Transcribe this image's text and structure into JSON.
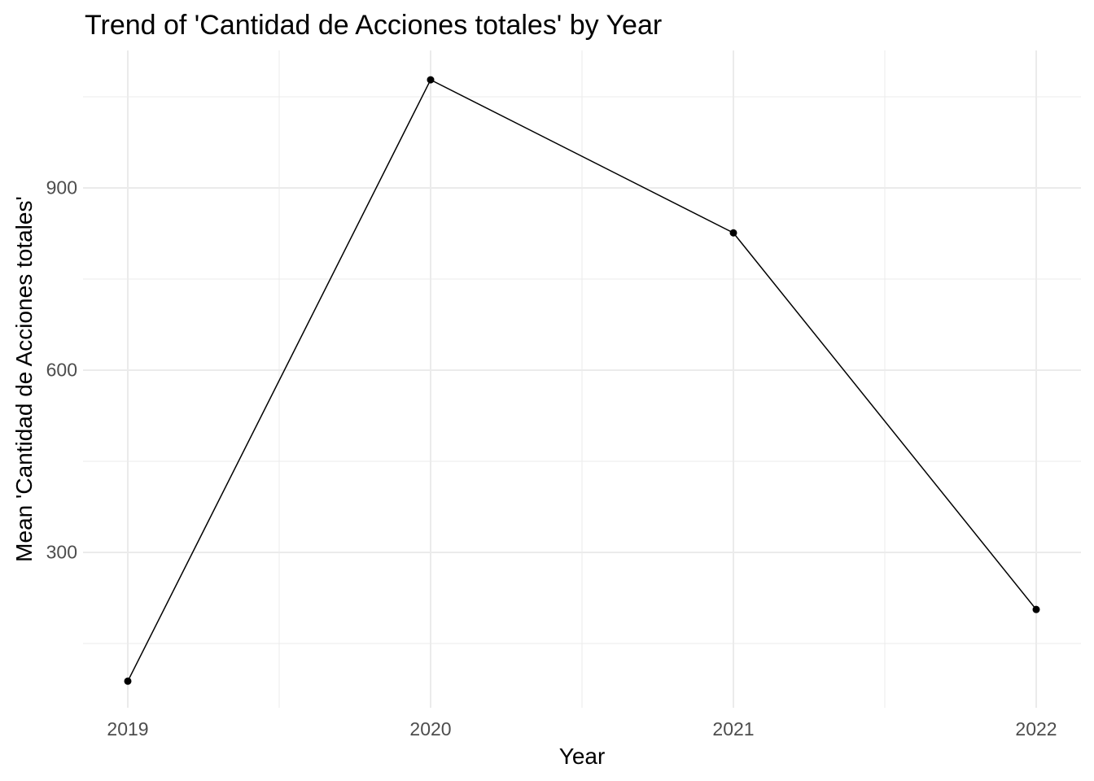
{
  "title": "Trend of 'Cantidad de Acciones totales' by Year",
  "x_axis": {
    "label": "Year",
    "tick_labels": [
      "2019",
      "2020",
      "2021",
      "2022"
    ]
  },
  "y_axis": {
    "label": "Mean 'Cantidad de Acciones totales'",
    "tick_labels": [
      "300",
      "600",
      "900"
    ]
  },
  "colors": {
    "background": "#ffffff",
    "grid_major": "#ebebeb",
    "grid_minor": "#ebebeb",
    "tick_label": "#4d4d4d",
    "title_text": "#000000",
    "line": "#000000",
    "point": "#000000"
  },
  "chart_data": {
    "type": "line",
    "title": "Trend of 'Cantidad de Acciones totales' by Year",
    "xlabel": "Year",
    "ylabel": "Mean 'Cantidad de Acciones totales'",
    "x": [
      2019,
      2020,
      2021,
      2022
    ],
    "series": [
      {
        "name": "Mean 'Cantidad de Acciones totales'",
        "values": [
          88,
          1078,
          826,
          206
        ]
      }
    ],
    "x_ticks": [
      2019,
      2020,
      2021,
      2022
    ],
    "y_ticks": [
      300,
      600,
      900
    ],
    "x_minor_gridlines": [
      2019.5,
      2020.5,
      2021.5
    ],
    "y_minor_gridlines": [
      150,
      450,
      750,
      1050
    ],
    "xlim": [
      2018.85,
      2022.15
    ],
    "ylim": [
      38,
      1126
    ],
    "grid": true,
    "legend_position": "none",
    "marker": "point",
    "line_color": "#000000"
  }
}
